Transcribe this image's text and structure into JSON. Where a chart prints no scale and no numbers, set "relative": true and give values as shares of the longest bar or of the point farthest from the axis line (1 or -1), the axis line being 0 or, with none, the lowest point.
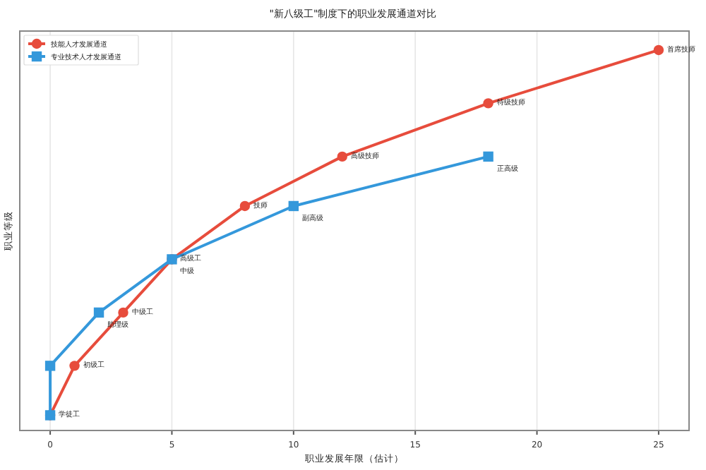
{
  "chart_data": {
    "type": "line",
    "title": "\"新八级工\"制度下的职业发展通道对比",
    "xlabel": "职业发展年限（估计）",
    "ylabel": "职业等级",
    "relative": true,
    "series": [
      {
        "name": "技能人才发展通道",
        "color": "#e74c3c",
        "marker": "circle",
        "x": [
          0,
          1,
          3,
          5,
          8,
          12,
          18,
          25
        ],
        "values": [
          0.04,
          0.17,
          0.31,
          0.45,
          0.59,
          0.72,
          0.86,
          1.0
        ]
      },
      {
        "name": "专业技术人才发展通道",
        "color": "#3498db",
        "marker": "square",
        "x": [
          0,
          0,
          2,
          5,
          10,
          18
        ],
        "values": [
          0.04,
          0.17,
          0.31,
          0.45,
          0.59,
          0.72
        ]
      }
    ],
    "annotations": [
      {
        "text": "学徒工",
        "x": 0,
        "y": 0.04
      },
      {
        "text": "初级工",
        "x": 1,
        "y": 0.17
      },
      {
        "text": "中级工",
        "x": 3,
        "y": 0.31
      },
      {
        "text": "高级工",
        "x": 5,
        "y": 0.45
      },
      {
        "text": "技师",
        "x": 8,
        "y": 0.59
      },
      {
        "text": "高级技师",
        "x": 12,
        "y": 0.72
      },
      {
        "text": "特级技师",
        "x": 18,
        "y": 0.86
      },
      {
        "text": "首席技师",
        "x": 25,
        "y": 1.0
      },
      {
        "text": "助理级",
        "x": 2,
        "y": 0.31
      },
      {
        "text": "中级",
        "x": 5,
        "y": 0.45
      },
      {
        "text": "副高级",
        "x": 10,
        "y": 0.59
      },
      {
        "text": "正高级",
        "x": 18,
        "y": 0.72
      }
    ],
    "xlim": [
      -1.25,
      26.25
    ],
    "xticks": [
      0,
      5,
      10,
      15,
      20,
      25
    ],
    "grid": "x",
    "legend": "top left",
    "line_style": "solid"
  }
}
